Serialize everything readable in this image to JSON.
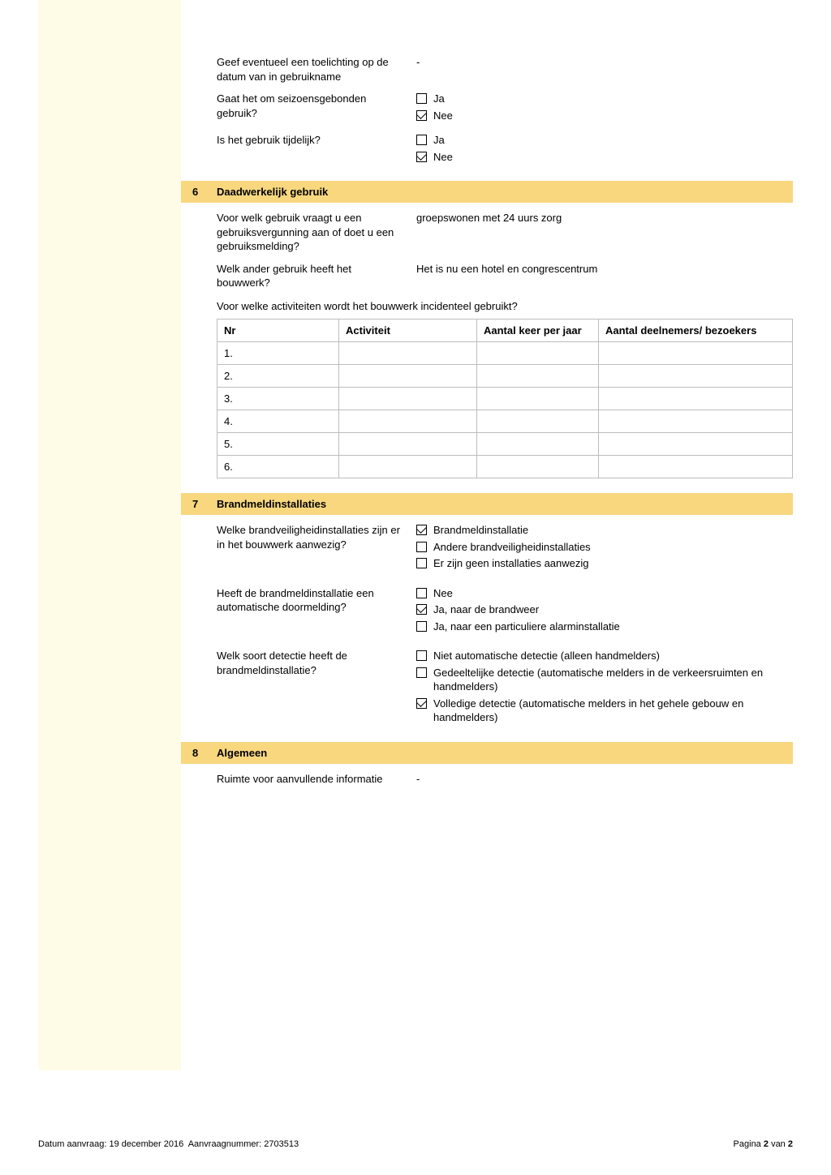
{
  "top": {
    "q_toelichting": "Geef eventueel een toelichting op de datum van in gebruikname",
    "a_toelichting": "-",
    "q_seizoen": "Gaat het om seizoensgebonden gebruik?",
    "q_tijdelijk": "Is het gebruik tijdelijk?",
    "opt_ja": "Ja",
    "opt_nee": "Nee",
    "seizoen_ja": false,
    "seizoen_nee": true,
    "tijdelijk_ja": false,
    "tijdelijk_nee": true
  },
  "sec6": {
    "num": "6",
    "title": "Daadwerkelijk gebruik",
    "q_gebruik": "Voor welk gebruik vraagt u een gebruiksvergunning aan of doet u een gebruiksmelding?",
    "a_gebruik": "groepswonen met 24 uurs zorg",
    "q_ander": "Welk ander gebruik heeft het bouwwerk?",
    "a_ander": "Het is nu een hotel en congrescentrum",
    "q_activiteiten": "Voor welke activiteiten wordt het bouwwerk incidenteel gebruikt?",
    "table": {
      "headers": {
        "nr": "Nr",
        "act": "Activiteit",
        "keer": "Aantal keer per jaar",
        "deel": "Aantal deelnemers/ bezoekers"
      },
      "rows": [
        {
          "nr": "1.",
          "act": "",
          "keer": "",
          "deel": ""
        },
        {
          "nr": "2.",
          "act": "",
          "keer": "",
          "deel": ""
        },
        {
          "nr": "3.",
          "act": "",
          "keer": "",
          "deel": ""
        },
        {
          "nr": "4.",
          "act": "",
          "keer": "",
          "deel": ""
        },
        {
          "nr": "5.",
          "act": "",
          "keer": "",
          "deel": ""
        },
        {
          "nr": "6.",
          "act": "",
          "keer": "",
          "deel": ""
        }
      ]
    }
  },
  "sec7": {
    "num": "7",
    "title": "Brandmeldinstallaties",
    "q_inst": "Welke brandveiligheidinstallaties zijn er in het bouwwerk aanwezig?",
    "inst_opts": [
      {
        "label": "Brandmeldinstallatie",
        "checked": true
      },
      {
        "label": "Andere brandveiligheidinstallaties",
        "checked": false
      },
      {
        "label": "Er zijn geen installaties aanwezig",
        "checked": false
      }
    ],
    "q_door": "Heeft de brandmeldinstallatie een automatische doormelding?",
    "door_opts": [
      {
        "label": "Nee",
        "checked": false
      },
      {
        "label": "Ja, naar de brandweer",
        "checked": true
      },
      {
        "label": "Ja, naar een particuliere alarminstallatie",
        "checked": false
      }
    ],
    "q_detect": "Welk soort detectie heeft de brandmeldinstallatie?",
    "detect_opts": [
      {
        "label": "Niet automatische detectie (alleen handmelders)",
        "checked": false
      },
      {
        "label": "Gedeeltelijke detectie (automatische melders in de verkeersruimten en handmelders)",
        "checked": false
      },
      {
        "label": "Volledige detectie (automatische melders in het gehele gebouw en handmelders)",
        "checked": true
      }
    ]
  },
  "sec8": {
    "num": "8",
    "title": "Algemeen",
    "q_info": "Ruimte voor aanvullende informatie",
    "a_info": "-"
  },
  "footer": {
    "datum_label": "Datum aanvraag:",
    "datum": "19 december 2016",
    "aanvraag_label": "Aanvraagnummer:",
    "aanvraag": "2703513",
    "pagina_label": "Pagina",
    "pagina_cur": "2",
    "pagina_van": "van",
    "pagina_tot": "2"
  }
}
